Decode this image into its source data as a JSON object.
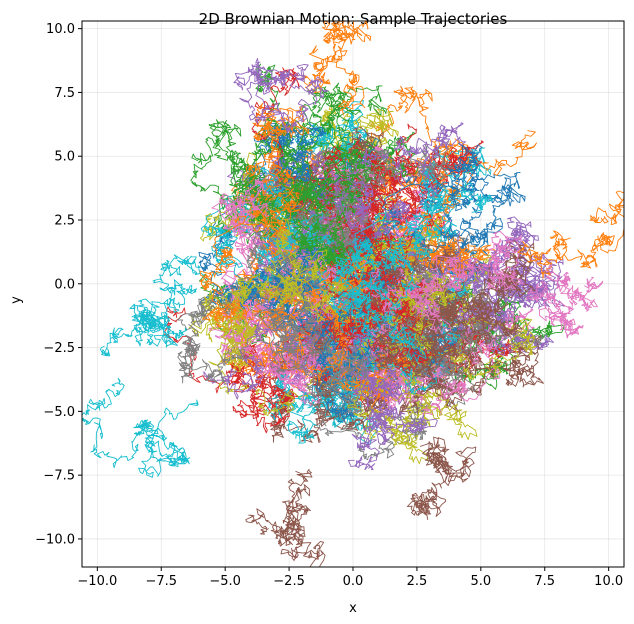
{
  "chart_data": {
    "type": "line",
    "title": "2D Brownian Motion: Sample Trajectories",
    "xlabel": "x",
    "ylabel": "y",
    "xlim": [
      -10.6,
      10.6
    ],
    "ylim": [
      -11.1,
      10.3
    ],
    "xticks": [
      -10.0,
      -7.5,
      -5.0,
      -2.5,
      0.0,
      2.5,
      5.0,
      7.5,
      10.0
    ],
    "yticks": [
      -10.0,
      -7.5,
      -5.0,
      -2.5,
      0.0,
      2.5,
      5.0,
      7.5,
      10.0
    ],
    "xtick_labels": [
      "−10.0",
      "−7.5",
      "−5.0",
      "−2.5",
      "0.0",
      "2.5",
      "5.0",
      "7.5",
      "10.0"
    ],
    "ytick_labels": [
      "−10.0",
      "−7.5",
      "−5.0",
      "−2.5",
      "0.0",
      "2.5",
      "5.0",
      "7.5",
      "10.0"
    ],
    "grid": true,
    "series_colors": [
      "#1f77b4",
      "#ff7f0e",
      "#2ca02c",
      "#d62728",
      "#9467bd",
      "#8c564b",
      "#e377c2",
      "#7f7f7f",
      "#bcbd22",
      "#17becf"
    ],
    "num_trajectories": 100,
    "steps_per_trajectory": 700,
    "point_cloud_radius_approx": 6.5,
    "notable_excursions": [
      {
        "color": "#17becf",
        "x": -9.5,
        "y": -1.8
      },
      {
        "color": "#17becf",
        "x": -8.5,
        "y": -6.3
      },
      {
        "color": "#8c564b",
        "x": -3.0,
        "y": -9.8
      },
      {
        "color": "#8c564b",
        "x": 3.5,
        "y": -8.5
      },
      {
        "color": "#ff7f0e",
        "x": 9.0,
        "y": 2.0
      },
      {
        "color": "#e377c2",
        "x": 9.6,
        "y": -0.5
      },
      {
        "color": "#ff7f0e",
        "x": -0.5,
        "y": 8.8
      },
      {
        "color": "#9467bd",
        "x": -3.6,
        "y": 8.3
      }
    ]
  }
}
